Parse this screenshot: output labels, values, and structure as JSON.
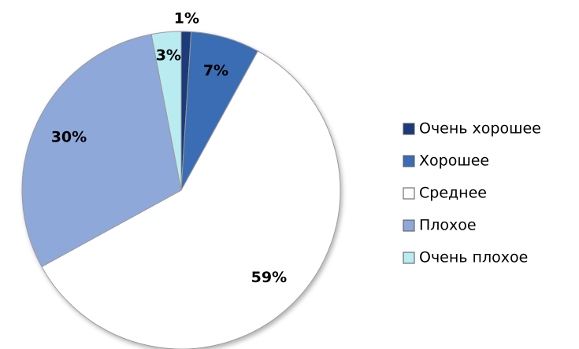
{
  "chart_data": {
    "type": "pie",
    "categories": [
      "Очень хорошее",
      "Хорошее",
      "Среднее",
      "Плохое",
      "Очень плохое"
    ],
    "values": [
      1,
      7,
      59,
      30,
      3
    ],
    "value_labels": [
      "1%",
      "7%",
      "59%",
      "30%",
      "3%"
    ],
    "colors": [
      "#1c3a78",
      "#3b6db4",
      "#ffffff",
      "#8ea8d9",
      "#b9ecf1"
    ],
    "legend": "right"
  }
}
